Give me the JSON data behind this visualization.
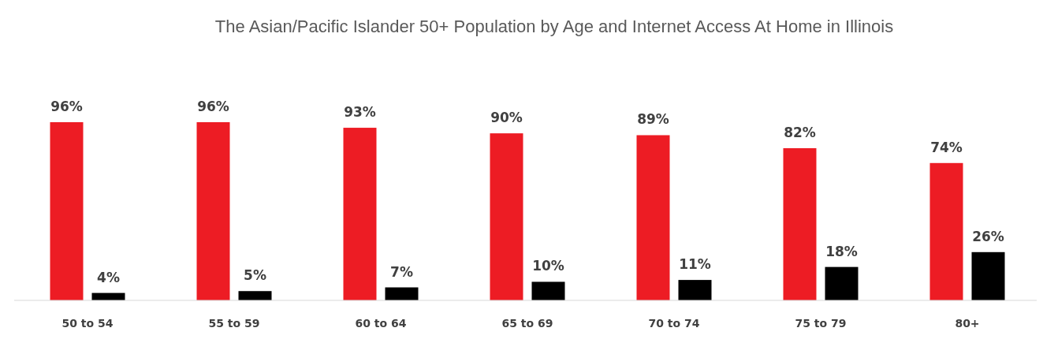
{
  "chart_data": {
    "type": "bar",
    "title": "The Asian/Pacific Islander 50+ Population by Age and Internet Access At Home in Illinois",
    "categories": [
      "50 to 54",
      "55 to 59",
      "60 to 64",
      "65 to 69",
      "70 to 74",
      "75 to 79",
      "80+"
    ],
    "series": [
      {
        "color": "#ed1c24",
        "values": [
          96,
          96,
          93,
          90,
          89,
          82,
          74
        ],
        "value_labels": [
          "96%",
          "96%",
          "93%",
          "90%",
          "89%",
          "82%",
          "74%"
        ]
      },
      {
        "color": "#000000",
        "values": [
          4,
          5,
          7,
          10,
          11,
          18,
          26
        ],
        "value_labels": [
          "4%",
          "5%",
          "7%",
          "10%",
          "11%",
          "18%",
          "26%"
        ]
      }
    ]
  }
}
